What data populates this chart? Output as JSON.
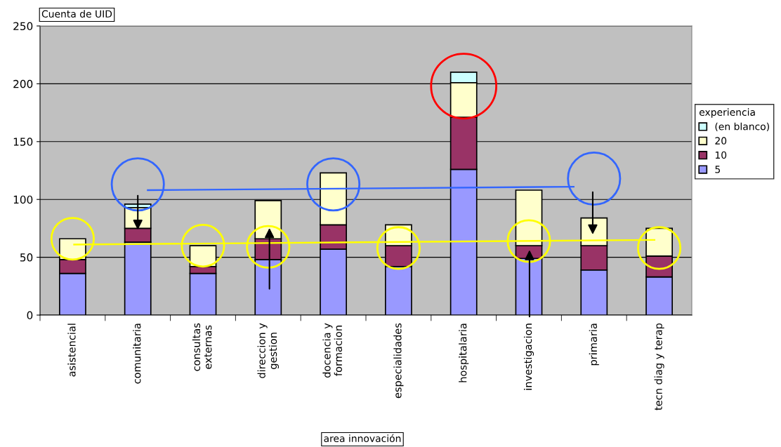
{
  "chart_data": {
    "type": "bar",
    "stacked": true,
    "ylabel": "Cuenta de UID",
    "xlabel": "area innovación",
    "legend_title": "experiencia",
    "categories": [
      "asistencial",
      "comunitaria",
      "consultas\nexternas",
      "direccion y\ngestion",
      "docencia y\nformacion",
      "especialidades",
      "hospitalaria",
      "investigacion",
      "primaria",
      "tecn diag y terap"
    ],
    "series": [
      {
        "name": "5",
        "color": "#9999ff",
        "values": [
          36,
          63,
          36,
          48,
          57,
          42,
          126,
          49,
          39,
          33
        ]
      },
      {
        "name": "10",
        "color": "#993366",
        "values": [
          12,
          12,
          6,
          18,
          21,
          18,
          45,
          11,
          21,
          18
        ]
      },
      {
        "name": "20",
        "color": "#ffffcc",
        "values": [
          18,
          18,
          18,
          33,
          45,
          18,
          30,
          48,
          24,
          24
        ]
      },
      {
        "name": "(en blanco)",
        "color": "#ccffff",
        "values": [
          null,
          3,
          null,
          null,
          null,
          null,
          9,
          null,
          null,
          null
        ]
      }
    ],
    "ylim": [
      0,
      250
    ],
    "yticks": [
      0,
      50,
      100,
      150,
      200,
      250
    ],
    "grid": "y",
    "legend": "right"
  }
}
